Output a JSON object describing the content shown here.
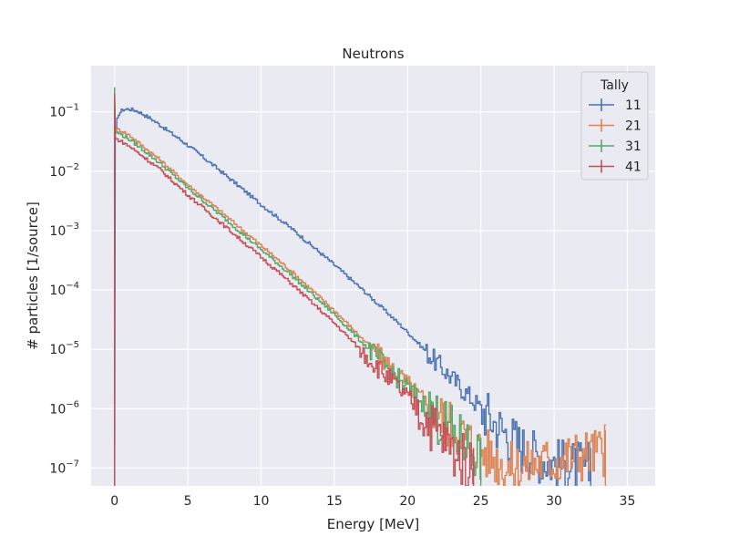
{
  "chart_data": {
    "type": "line",
    "title": "Neutrons",
    "xlabel": "Energy [MeV]",
    "ylabel": "# particles [1/source]",
    "xlim": [
      -1.6,
      36.9
    ],
    "ylim": [
      5e-08,
      0.6
    ],
    "yscale": "log",
    "grid": true,
    "x_ticks": [
      0,
      5,
      10,
      15,
      20,
      25,
      30,
      35
    ],
    "y_ticks": [
      {
        "value": 1e-07,
        "base": "10",
        "exp": "−7"
      },
      {
        "value": 1e-06,
        "base": "10",
        "exp": "−6"
      },
      {
        "value": 1e-05,
        "base": "10",
        "exp": "−5"
      },
      {
        "value": 0.0001,
        "base": "10",
        "exp": "−4"
      },
      {
        "value": 0.001,
        "base": "10",
        "exp": "−3"
      },
      {
        "value": 0.01,
        "base": "10",
        "exp": "−2"
      },
      {
        "value": 0.1,
        "base": "10",
        "exp": "−1"
      }
    ],
    "legend": {
      "title": "Tally",
      "position": "top-right"
    },
    "series": [
      {
        "name": "11",
        "color": "#4c72b0",
        "x": [
          0,
          0.05,
          0.2,
          0.5,
          0.9,
          1.5,
          2.5,
          3.5,
          5,
          7,
          10,
          12,
          15,
          17,
          19,
          20,
          22,
          24,
          26,
          28,
          30,
          32.5
        ],
        "y": [
          1e-08,
          0.05,
          0.09,
          0.108,
          0.112,
          0.104,
          0.075,
          0.05,
          0.027,
          0.011,
          0.0027,
          0.0011,
          0.00026,
          9.5e-05,
          3.3e-05,
          1.9e-05,
          5.8e-06,
          1.8e-06,
          5.5e-07,
          2e-07,
          1.2e-07,
          1e-07
        ]
      },
      {
        "name": "21",
        "color": "#dd8452",
        "x": [
          0,
          0.05,
          0.3,
          1,
          2,
          3,
          5,
          7,
          10,
          12,
          15,
          17,
          19,
          21,
          23,
          25,
          27,
          33.5
        ],
        "y": [
          0.17,
          0.05,
          0.05,
          0.04,
          0.025,
          0.016,
          0.0058,
          0.0023,
          0.00055,
          0.00021,
          4.4e-05,
          1.4e-05,
          4.5e-06,
          1.4e-06,
          5e-07,
          2e-07,
          1e-07,
          2e-07
        ]
      },
      {
        "name": "31",
        "color": "#55a868",
        "x": [
          0,
          0.05,
          0.3,
          1,
          2,
          3,
          5,
          7,
          10,
          12,
          15,
          17,
          19,
          21,
          23,
          25
        ],
        "y": [
          0.26,
          0.045,
          0.043,
          0.034,
          0.022,
          0.014,
          0.0051,
          0.002,
          0.00047,
          0.00018,
          3.8e-05,
          1.2e-05,
          3.8e-06,
          1.2e-06,
          4e-07,
          1.5e-07
        ]
      },
      {
        "name": "41",
        "color": "#c44e52",
        "x": [
          0,
          0.05,
          0.3,
          1,
          2,
          3,
          5,
          7,
          10,
          12,
          15,
          17,
          19,
          21,
          23,
          24.5
        ],
        "y": [
          0.2,
          0.035,
          0.033,
          0.026,
          0.017,
          0.011,
          0.0039,
          0.0015,
          0.00035,
          0.00013,
          2.7e-05,
          8.5e-06,
          2.7e-06,
          8e-07,
          2e-07,
          1e-07
        ]
      }
    ]
  }
}
